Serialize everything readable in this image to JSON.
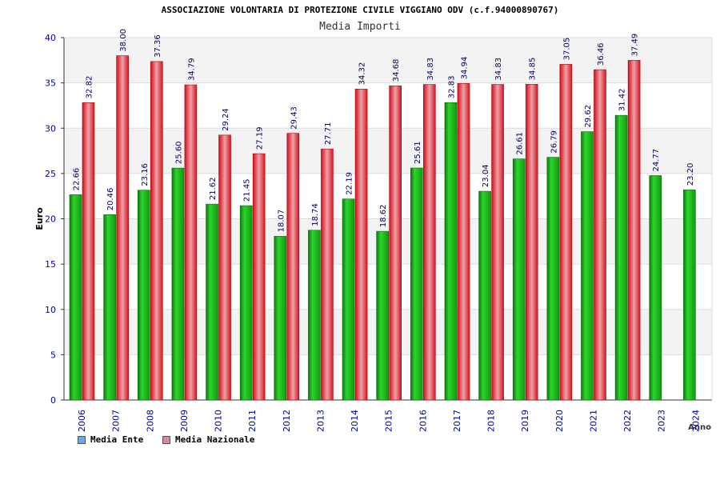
{
  "header": {
    "title": "ASSOCIAZIONE VOLONTARIA DI PROTEZIONE CIVILE VIGGIANO ODV (c.f.94000890767)",
    "subtitle": "Media Importi"
  },
  "legend": {
    "ente_label": "Media Ente",
    "nazionale_label": "Media Nazionale",
    "ente_color": "#6fa8dc",
    "nazionale_color": "#e082b0"
  },
  "colors": {
    "ente_bar": "#1aa81a",
    "nazionale_bar": "#e8202a",
    "axis_text": "#0000aa",
    "value_text": "#000066"
  },
  "chart_data": {
    "type": "bar",
    "title": "Media Importi",
    "xlabel": "Anno",
    "ylabel": "Euro",
    "ylim": [
      0,
      40
    ],
    "yticks": [
      0,
      5,
      10,
      15,
      20,
      25,
      30,
      35,
      40
    ],
    "grid": "horizontal bands",
    "legend_position": "bottom-left",
    "categories": [
      "2006",
      "2007",
      "2008",
      "2009",
      "2010",
      "2011",
      "2012",
      "2013",
      "2014",
      "2015",
      "2016",
      "2017",
      "2018",
      "2019",
      "2020",
      "2021",
      "2022",
      "2023",
      "2024"
    ],
    "series": [
      {
        "name": "Media Ente",
        "values": [
          22.66,
          20.46,
          23.16,
          25.6,
          21.62,
          21.45,
          18.07,
          18.74,
          22.19,
          18.62,
          25.61,
          32.83,
          23.04,
          26.61,
          26.79,
          29.62,
          31.42,
          24.77,
          23.2
        ],
        "labels": [
          "22.66",
          "20.46",
          "23.16",
          "25.60",
          "21.62",
          "21.45",
          "18.07",
          "18.74",
          "22.19",
          "18.62",
          "25.61",
          "32.83",
          "23.04",
          "26.61",
          "26.79",
          "29.62",
          "31.42",
          "24.77",
          "23.20"
        ]
      },
      {
        "name": "Media Nazionale",
        "values": [
          32.82,
          38.0,
          37.36,
          34.79,
          29.24,
          27.19,
          29.43,
          27.71,
          34.32,
          34.68,
          34.83,
          34.94,
          34.83,
          34.85,
          37.05,
          36.46,
          37.49,
          null,
          null
        ],
        "labels": [
          "32.82",
          "38.00",
          "37.36",
          "34.79",
          "29.24",
          "27.19",
          "29.43",
          "27.71",
          "34.32",
          "34.68",
          "34.83",
          "34.94",
          "34.83",
          "34.85",
          "37.05",
          "36.46",
          "37.49",
          "",
          ""
        ]
      }
    ]
  }
}
